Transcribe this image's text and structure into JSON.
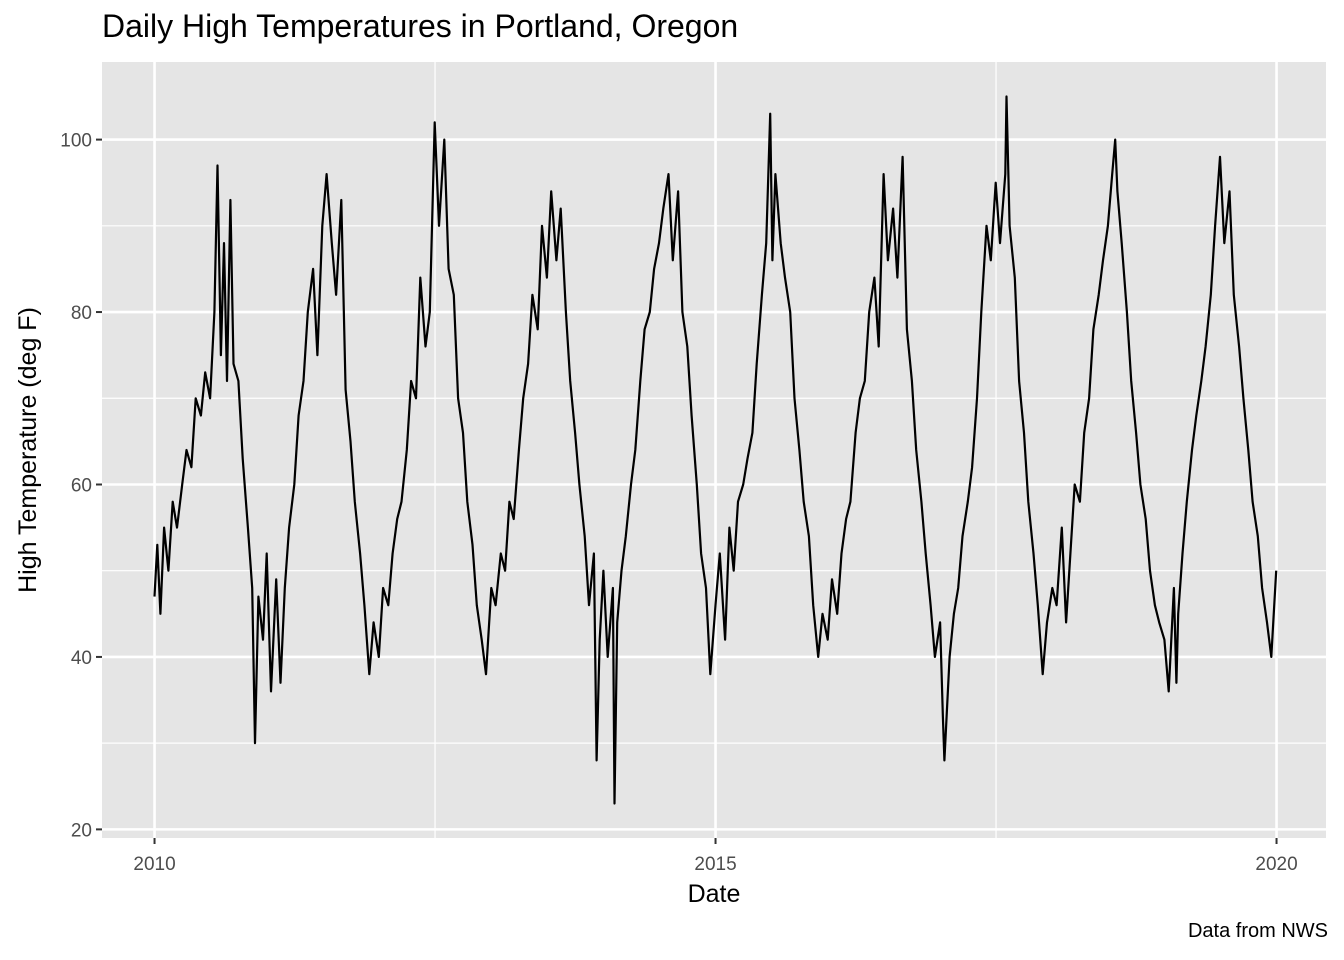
{
  "chart_data": {
    "type": "line",
    "title": "Daily High Temperatures in Portland, Oregon",
    "xlabel": "Date",
    "ylabel": "High Temperature (deg F)",
    "caption": "Data from NWS",
    "xlim": [
      "2009-07-14",
      "2020-06-10"
    ],
    "ylim": [
      19,
      109
    ],
    "x_ticks": [
      "2010",
      "2015",
      "2020"
    ],
    "y_ticks": [
      20,
      40,
      60,
      80,
      100
    ],
    "grid": true,
    "legend": "none",
    "line_color": "#000000",
    "panel_color": "#e5e5e5",
    "series": [
      {
        "x": [
          "2010-01-01",
          "2010-01-10",
          "2010-01-20",
          "2010-02-01",
          "2010-02-15",
          "2010-03-01",
          "2010-03-15",
          "2010-04-01",
          "2010-04-15",
          "2010-05-01",
          "2010-05-15",
          "2010-06-01",
          "2010-06-15",
          "2010-07-01",
          "2010-07-15",
          "2010-07-25",
          "2010-08-05",
          "2010-08-15",
          "2010-08-25",
          "2010-09-05",
          "2010-09-15",
          "2010-10-01",
          "2010-10-15",
          "2010-11-01",
          "2010-11-15",
          "2010-11-24",
          "2010-12-05",
          "2010-12-20",
          "2011-01-01",
          "2011-01-15",
          "2011-02-01",
          "2011-02-15",
          "2011-03-01",
          "2011-03-15",
          "2011-04-01",
          "2011-04-15",
          "2011-05-01",
          "2011-05-15",
          "2011-06-01",
          "2011-06-15",
          "2011-07-01",
          "2011-07-15",
          "2011-08-01",
          "2011-08-15",
          "2011-09-01",
          "2011-09-15",
          "2011-10-01",
          "2011-10-15",
          "2011-11-01",
          "2011-11-15",
          "2011-12-01",
          "2011-12-15",
          "2012-01-01",
          "2012-01-15",
          "2012-02-01",
          "2012-02-15",
          "2012-03-01",
          "2012-03-15",
          "2012-04-01",
          "2012-04-15",
          "2012-05-01",
          "2012-05-15",
          "2012-06-01",
          "2012-06-15",
          "2012-07-01",
          "2012-07-15",
          "2012-08-01",
          "2012-08-15",
          "2012-09-01",
          "2012-09-15",
          "2012-10-01",
          "2012-10-15",
          "2012-11-01",
          "2012-11-15",
          "2012-12-01",
          "2012-12-15",
          "2013-01-01",
          "2013-01-15",
          "2013-02-01",
          "2013-02-15",
          "2013-03-01",
          "2013-03-15",
          "2013-04-01",
          "2013-04-15",
          "2013-05-01",
          "2013-05-15",
          "2013-06-01",
          "2013-06-15",
          "2013-07-01",
          "2013-07-15",
          "2013-08-01",
          "2013-08-15",
          "2013-09-01",
          "2013-09-15",
          "2013-10-01",
          "2013-10-15",
          "2013-11-01",
          "2013-11-15",
          "2013-12-01",
          "2013-12-10",
          "2013-12-20",
          "2014-01-01",
          "2014-01-15",
          "2014-02-01",
          "2014-02-06",
          "2014-02-15",
          "2014-03-01",
          "2014-03-15",
          "2014-04-01",
          "2014-04-15",
          "2014-05-01",
          "2014-05-15",
          "2014-06-01",
          "2014-06-15",
          "2014-07-01",
          "2014-07-15",
          "2014-08-01",
          "2014-08-15",
          "2014-09-01",
          "2014-09-15",
          "2014-10-01",
          "2014-10-15",
          "2014-11-01",
          "2014-11-15",
          "2014-12-01",
          "2014-12-15",
          "2015-01-01",
          "2015-01-15",
          "2015-02-01",
          "2015-02-15",
          "2015-03-01",
          "2015-03-15",
          "2015-04-01",
          "2015-04-15",
          "2015-05-01",
          "2015-05-15",
          "2015-06-01",
          "2015-06-15",
          "2015-06-28",
          "2015-07-05",
          "2015-07-15",
          "2015-08-01",
          "2015-08-15",
          "2015-09-01",
          "2015-09-15",
          "2015-10-01",
          "2015-10-15",
          "2015-11-01",
          "2015-11-15",
          "2015-12-01",
          "2015-12-15",
          "2016-01-01",
          "2016-01-15",
          "2016-02-01",
          "2016-02-15",
          "2016-03-01",
          "2016-03-15",
          "2016-04-01",
          "2016-04-15",
          "2016-05-01",
          "2016-05-15",
          "2016-06-01",
          "2016-06-15",
          "2016-07-01",
          "2016-07-15",
          "2016-08-01",
          "2016-08-15",
          "2016-09-01",
          "2016-09-15",
          "2016-10-01",
          "2016-10-15",
          "2016-11-01",
          "2016-11-15",
          "2016-12-01",
          "2016-12-15",
          "2017-01-01",
          "2017-01-10",
          "2017-01-15",
          "2017-02-01",
          "2017-02-15",
          "2017-03-01",
          "2017-03-15",
          "2017-04-01",
          "2017-04-15",
          "2017-05-01",
          "2017-05-15",
          "2017-06-01",
          "2017-06-15",
          "2017-07-01",
          "2017-07-15",
          "2017-08-01",
          "2017-08-05",
          "2017-08-15",
          "2017-09-01",
          "2017-09-15",
          "2017-10-01",
          "2017-10-15",
          "2017-11-01",
          "2017-11-15",
          "2017-12-01",
          "2017-12-15",
          "2018-01-01",
          "2018-01-15",
          "2018-02-01",
          "2018-02-15",
          "2018-03-01",
          "2018-03-15",
          "2018-04-01",
          "2018-04-15",
          "2018-05-01",
          "2018-05-15",
          "2018-06-01",
          "2018-06-15",
          "2018-07-01",
          "2018-07-15",
          "2018-07-25",
          "2018-08-01",
          "2018-08-15",
          "2018-09-01",
          "2018-09-15",
          "2018-10-01",
          "2018-10-15",
          "2018-11-01",
          "2018-11-15",
          "2018-12-01",
          "2018-12-15",
          "2019-01-01",
          "2019-01-15",
          "2019-02-01",
          "2019-02-09",
          "2019-02-15",
          "2019-03-01",
          "2019-03-15",
          "2019-04-01",
          "2019-04-15",
          "2019-05-01",
          "2019-05-15",
          "2019-06-01",
          "2019-06-15",
          "2019-07-01",
          "2019-07-15",
          "2019-08-01",
          "2019-08-15",
          "2019-09-01",
          "2019-09-15",
          "2019-10-01",
          "2019-10-15",
          "2019-11-01",
          "2019-11-15",
          "2019-12-01",
          "2019-12-15",
          "2019-12-31"
        ],
        "y": [
          47,
          53,
          45,
          55,
          50,
          58,
          55,
          60,
          64,
          62,
          70,
          68,
          73,
          70,
          80,
          97,
          75,
          88,
          72,
          93,
          74,
          72,
          63,
          55,
          48,
          30,
          47,
          42,
          52,
          36,
          49,
          37,
          48,
          55,
          60,
          68,
          72,
          80,
          85,
          75,
          90,
          96,
          88,
          82,
          93,
          71,
          65,
          58,
          52,
          46,
          38,
          44,
          40,
          48,
          46,
          52,
          56,
          58,
          64,
          72,
          70,
          84,
          76,
          80,
          102,
          90,
          100,
          85,
          82,
          70,
          66,
          58,
          53,
          46,
          42,
          38,
          48,
          46,
          52,
          50,
          58,
          56,
          64,
          70,
          74,
          82,
          78,
          90,
          84,
          94,
          86,
          92,
          80,
          72,
          66,
          60,
          54,
          46,
          52,
          28,
          42,
          50,
          40,
          48,
          23,
          44,
          50,
          54,
          60,
          64,
          72,
          78,
          80,
          85,
          88,
          92,
          96,
          86,
          94,
          80,
          76,
          68,
          60,
          52,
          48,
          38,
          46,
          52,
          42,
          55,
          50,
          58,
          60,
          63,
          66,
          74,
          82,
          88,
          103,
          86,
          96,
          88,
          84,
          80,
          70,
          64,
          58,
          54,
          46,
          40,
          45,
          42,
          49,
          45,
          52,
          56,
          58,
          66,
          70,
          72,
          80,
          84,
          76,
          96,
          86,
          92,
          84,
          98,
          78,
          72,
          64,
          58,
          52,
          46,
          40,
          44,
          33,
          28,
          40,
          45,
          48,
          54,
          58,
          62,
          70,
          80,
          90,
          86,
          95,
          88,
          96,
          105,
          90,
          84,
          72,
          66,
          58,
          52,
          46,
          38,
          44,
          48,
          46,
          55,
          44,
          52,
          60,
          58,
          66,
          70,
          78,
          82,
          86,
          90,
          96,
          100,
          94,
          88,
          80,
          72,
          66,
          60,
          56,
          50,
          46,
          44,
          42,
          36,
          48,
          37,
          45,
          52,
          58,
          64,
          68,
          72,
          76,
          82,
          90,
          98,
          88,
          94,
          82,
          76,
          70,
          64,
          58,
          54,
          48,
          44,
          40,
          50
        ]
      }
    ]
  }
}
